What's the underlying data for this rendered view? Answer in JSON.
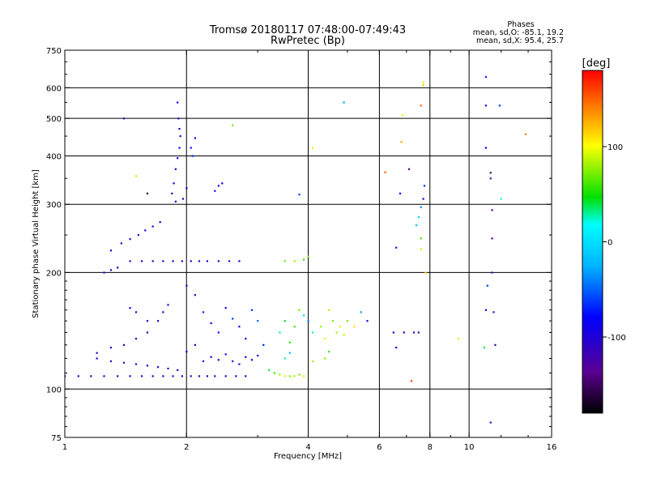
{
  "chart_data": {
    "type": "scatter",
    "title": "Tromsø 20180117 07:48:00-07:49:43",
    "subtitle": "RwPretec (Bp)",
    "xlabel": "Frequency [MHz]",
    "ylabel": "Stationary phase Virtual Height [km]",
    "x_scale": "log",
    "y_scale": "log",
    "xlim": [
      1,
      16
    ],
    "ylim": [
      75,
      750
    ],
    "x_ticks": [
      1,
      2,
      4,
      6,
      8,
      10,
      16
    ],
    "x_tick_labels": [
      "1",
      "2",
      "4",
      "6",
      "8",
      "10",
      "16"
    ],
    "y_ticks": [
      75,
      100,
      200,
      300,
      400,
      500,
      600,
      750
    ],
    "y_tick_labels": [
      "75",
      "100",
      "200",
      "300",
      "400",
      "500",
      "600",
      "750"
    ],
    "grid": true,
    "colorbar": {
      "label": "[deg]",
      "range": [
        -180,
        180
      ],
      "ticks": [
        -100,
        0,
        100
      ],
      "tick_labels": [
        "-100",
        "0",
        "100"
      ]
    },
    "phase_summary": {
      "heading": "Phases",
      "o_line": "mean, sd,O: -85.1, 19.2",
      "x_line": "mean, sd,X:  95.4, 25.7"
    },
    "series": [
      {
        "points": [
          [
            1.0,
            108,
            -110
          ],
          [
            1.08,
            108,
            -108
          ],
          [
            1.16,
            108,
            -112
          ],
          [
            1.25,
            108,
            -105
          ],
          [
            1.35,
            108,
            -110
          ],
          [
            1.45,
            108,
            -100
          ],
          [
            1.55,
            108,
            -115
          ],
          [
            1.65,
            108,
            -108
          ],
          [
            1.75,
            108,
            -102
          ],
          [
            1.85,
            108,
            -110
          ],
          [
            1.95,
            108,
            -95
          ],
          [
            2.05,
            108,
            -112
          ],
          [
            2.15,
            108,
            -105
          ],
          [
            2.25,
            108,
            -108
          ],
          [
            2.35,
            108,
            -100
          ],
          [
            2.5,
            108,
            -110
          ],
          [
            2.65,
            108,
            -105
          ],
          [
            2.8,
            108,
            -95
          ],
          [
            1.25,
            200,
            -108
          ],
          [
            1.3,
            203,
            -105
          ],
          [
            1.35,
            206,
            -110
          ],
          [
            1.45,
            214,
            -108
          ],
          [
            1.55,
            214,
            -112
          ],
          [
            1.65,
            214,
            -110
          ],
          [
            1.75,
            214,
            -105
          ],
          [
            1.85,
            214,
            -108
          ],
          [
            1.95,
            214,
            -110
          ],
          [
            2.05,
            214,
            -112
          ],
          [
            2.15,
            214,
            -108
          ],
          [
            2.25,
            214,
            -105
          ],
          [
            2.4,
            214,
            -112
          ],
          [
            2.55,
            214,
            -108
          ],
          [
            2.7,
            214,
            -110
          ],
          [
            1.3,
            228,
            -105
          ],
          [
            1.38,
            238,
            -100
          ],
          [
            1.45,
            244,
            -108
          ],
          [
            1.52,
            250,
            -105
          ],
          [
            1.58,
            257,
            -100
          ],
          [
            1.65,
            263,
            -105
          ],
          [
            1.72,
            270,
            -110
          ],
          [
            1.9,
            550,
            -85
          ],
          [
            1.91,
            500,
            -105
          ],
          [
            1.92,
            470,
            -95
          ],
          [
            1.93,
            450,
            -110
          ],
          [
            1.92,
            420,
            -85
          ],
          [
            1.9,
            395,
            -80
          ],
          [
            1.88,
            370,
            -100
          ],
          [
            1.86,
            340,
            -95
          ],
          [
            1.84,
            320,
            -105
          ],
          [
            1.88,
            305,
            -100
          ],
          [
            1.96,
            310,
            -105
          ],
          [
            2.0,
            330,
            -95
          ],
          [
            2.05,
            420,
            -75
          ],
          [
            2.07,
            400,
            -70
          ],
          [
            2.1,
            445,
            -80
          ],
          [
            2.35,
            325,
            -95
          ],
          [
            2.4,
            335,
            -100
          ],
          [
            2.45,
            340,
            -90
          ],
          [
            2.0,
            185,
            -110
          ],
          [
            2.1,
            175,
            -100
          ],
          [
            1.8,
            165,
            -105
          ],
          [
            1.75,
            158,
            -95
          ],
          [
            1.7,
            150,
            -110
          ],
          [
            1.6,
            140,
            -102
          ],
          [
            1.5,
            135,
            -100
          ],
          [
            1.4,
            130,
            -105
          ],
          [
            1.3,
            128,
            -108
          ],
          [
            1.2,
            124,
            -110
          ],
          [
            1.2,
            120,
            -100
          ],
          [
            1.3,
            118,
            -105
          ],
          [
            1.4,
            117,
            -110
          ],
          [
            1.5,
            116,
            -108
          ],
          [
            1.6,
            115,
            -105
          ],
          [
            1.7,
            114,
            -110
          ],
          [
            1.8,
            113,
            -108
          ],
          [
            1.9,
            112,
            -105
          ],
          [
            2.0,
            125,
            -100
          ],
          [
            2.1,
            130,
            -105
          ],
          [
            2.2,
            118,
            -110
          ],
          [
            2.3,
            121,
            -95
          ],
          [
            2.4,
            119,
            -105
          ],
          [
            2.5,
            123,
            -100
          ],
          [
            2.6,
            118,
            -110
          ],
          [
            2.7,
            116,
            -105
          ],
          [
            2.8,
            121,
            -95
          ],
          [
            2.9,
            119,
            -100
          ],
          [
            3.0,
            122,
            -105
          ],
          [
            2.2,
            158,
            -70
          ],
          [
            2.3,
            148,
            -90
          ],
          [
            2.4,
            140,
            -75
          ],
          [
            2.5,
            162,
            -95
          ],
          [
            2.6,
            152,
            -60
          ],
          [
            2.7,
            145,
            -80
          ],
          [
            2.8,
            135,
            -90
          ],
          [
            2.9,
            160,
            -65
          ],
          [
            3.0,
            150,
            -50
          ],
          [
            3.1,
            130,
            -70
          ],
          [
            1.6,
            150,
            -105
          ],
          [
            1.5,
            158,
            -100
          ],
          [
            1.45,
            162,
            -80
          ],
          [
            3.2,
            112,
            40
          ],
          [
            3.3,
            110,
            60
          ],
          [
            3.4,
            109,
            80
          ],
          [
            3.5,
            108,
            90
          ],
          [
            3.6,
            108,
            75
          ],
          [
            3.7,
            108,
            85
          ],
          [
            3.8,
            109,
            70
          ],
          [
            3.9,
            108,
            90
          ],
          [
            3.4,
            140,
            30
          ],
          [
            3.5,
            150,
            45
          ],
          [
            3.6,
            132,
            55
          ],
          [
            3.7,
            145,
            60
          ],
          [
            3.8,
            160,
            70
          ],
          [
            3.6,
            124,
            -20
          ],
          [
            3.5,
            120,
            30
          ],
          [
            3.5,
            214,
            70
          ],
          [
            3.7,
            214,
            80
          ],
          [
            3.9,
            216,
            60
          ],
          [
            4.0,
            220,
            75
          ],
          [
            3.9,
            155,
            0
          ],
          [
            4.0,
            150,
            -40
          ],
          [
            4.1,
            140,
            25
          ],
          [
            4.3,
            145,
            80
          ],
          [
            4.4,
            135,
            100
          ],
          [
            4.5,
            160,
            90
          ],
          [
            4.6,
            150,
            70
          ],
          [
            4.5,
            125,
            60
          ],
          [
            4.4,
            120,
            75
          ],
          [
            4.7,
            140,
            80
          ],
          [
            4.8,
            145,
            95
          ],
          [
            4.9,
            138,
            85
          ],
          [
            5.0,
            150,
            70
          ],
          [
            5.2,
            145,
            110
          ],
          [
            5.4,
            158,
            -30
          ],
          [
            5.6,
            150,
            -95
          ],
          [
            4.1,
            118,
            80
          ],
          [
            2.6,
            480,
            70
          ],
          [
            3.8,
            318,
            -60
          ],
          [
            4.1,
            420,
            110
          ],
          [
            4.9,
            550,
            -30
          ],
          [
            1.4,
            500,
            -95
          ],
          [
            1.6,
            320,
            -160
          ],
          [
            1.5,
            355,
            85
          ],
          [
            6.6,
            232,
            -95
          ],
          [
            6.75,
            320,
            -80
          ],
          [
            6.8,
            435,
            130
          ],
          [
            6.85,
            510,
            110
          ],
          [
            7.1,
            370,
            -140
          ],
          [
            7.4,
            265,
            -20
          ],
          [
            7.5,
            278,
            -10
          ],
          [
            7.6,
            295,
            -40
          ],
          [
            7.7,
            310,
            -80
          ],
          [
            7.75,
            335,
            -70
          ],
          [
            7.6,
            245,
            60
          ],
          [
            7.6,
            230,
            90
          ],
          [
            7.8,
            200,
            120
          ],
          [
            7.6,
            540,
            150
          ],
          [
            7.7,
            610,
            120
          ],
          [
            7.7,
            620,
            90
          ],
          [
            6.2,
            363,
            150
          ],
          [
            6.5,
            140,
            -95
          ],
          [
            6.9,
            140,
            -100
          ],
          [
            7.3,
            140,
            -110
          ],
          [
            7.5,
            140,
            -120
          ],
          [
            7.2,
            105,
            160
          ],
          [
            9.4,
            135,
            90
          ],
          [
            6.6,
            128,
            -90
          ],
          [
            11.0,
            640,
            -70
          ],
          [
            11.0,
            540,
            -105
          ],
          [
            11.0,
            420,
            -90
          ],
          [
            11.9,
            540,
            -60
          ],
          [
            11.3,
            362,
            -150
          ],
          [
            11.3,
            350,
            -130
          ],
          [
            11.4,
            290,
            -140
          ],
          [
            11.4,
            245,
            -130
          ],
          [
            11.4,
            200,
            -100
          ],
          [
            11.1,
            185,
            -60
          ],
          [
            11.0,
            160,
            -100
          ],
          [
            11.5,
            158,
            -120
          ],
          [
            10.9,
            128,
            40
          ],
          [
            11.3,
            82,
            -120
          ],
          [
            12.0,
            310,
            10
          ],
          [
            13.8,
            455,
            140
          ],
          [
            11.6,
            130,
            -110
          ]
        ]
      }
    ]
  }
}
